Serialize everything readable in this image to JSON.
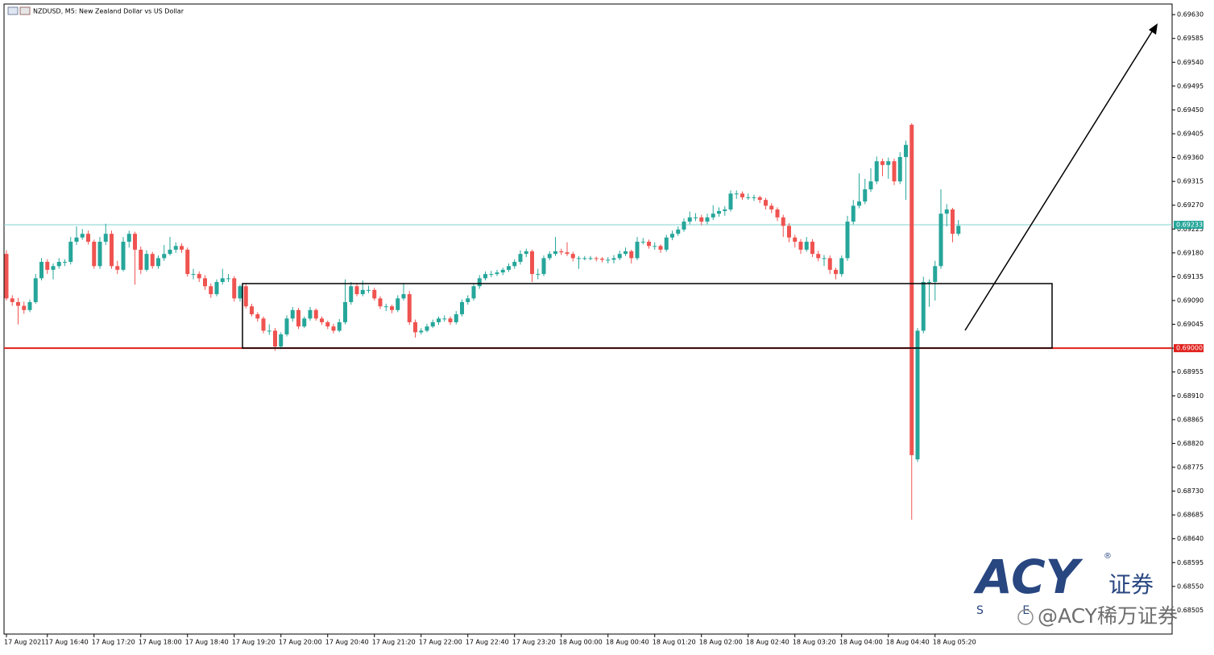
{
  "chart_data": {
    "type": "candlestick",
    "title": "NZDUSD, M5:  New Zealand Dollar vs US Dollar",
    "up_color": "#26a69a",
    "down_color": "#ef5350",
    "ylim": [
      0.6846,
      0.6965
    ],
    "yticks": [
      0.68505,
      {
        "value": 0.6855,
        "label": "0.68550"
      },
      0.68595,
      {
        "value": 0.6864,
        "label": "0.68640"
      },
      0.68685,
      {
        "value": 0.6873,
        "label": "0.68730"
      },
      0.68775,
      {
        "value": 0.6882,
        "label": "0.68820"
      },
      0.68865,
      {
        "value": 0.6891,
        "label": "0.68910"
      },
      0.68955,
      {
        "value": 0.69,
        "label": "0.69000"
      },
      0.69045,
      {
        "value": 0.6909,
        "label": "0.69090"
      },
      0.69135,
      {
        "value": 0.6918,
        "label": "0.69180"
      },
      0.69225,
      {
        "value": 0.6927,
        "label": "0.69270"
      },
      0.69315,
      {
        "value": 0.6936,
        "label": "0.69360"
      },
      0.69405,
      {
        "value": 0.6945,
        "label": "0.69450"
      },
      0.69495,
      {
        "value": 0.6954,
        "label": "0.69540"
      },
      0.69585,
      {
        "value": 0.6963,
        "label": "0.69630"
      }
    ],
    "hlines": [
      {
        "price": 0.69233,
        "color": "#7fd3cf",
        "label_color": "#26a69a"
      },
      {
        "price": {
          "value": 0.69,
          "label": "0.69000"
        },
        "color": "#e0201c",
        "label_color": "#e0201c"
      }
    ],
    "categories": [
      "17 Aug 2021",
      null,
      null,
      null,
      null,
      null,
      null,
      "17 Aug 16:40",
      null,
      null,
      null,
      null,
      null,
      null,
      null,
      "17 Aug 17:20",
      null,
      null,
      null,
      null,
      null,
      null,
      null,
      "17 Aug 18:00",
      null,
      null,
      null,
      null,
      null,
      null,
      null,
      "17 Aug 18:40",
      null,
      null,
      null,
      null,
      null,
      null,
      null,
      "17 Aug 19:20",
      null,
      null,
      null,
      null,
      null,
      null,
      null,
      "17 Aug 20:00",
      null,
      null,
      null,
      null,
      null,
      null,
      null,
      "17 Aug 20:40",
      null,
      null,
      null,
      null,
      null,
      null,
      null,
      "17 Aug 21:20",
      null,
      null,
      null,
      null,
      null,
      null,
      null,
      "17 Aug 22:00",
      null,
      null,
      null,
      null,
      null,
      null,
      null,
      "17 Aug 22:40",
      null,
      null,
      null,
      null,
      null,
      null,
      null,
      "17 Aug 23:20",
      null,
      null,
      null,
      null,
      null,
      null,
      null,
      "18 Aug 00:00",
      null,
      null,
      null,
      null,
      null,
      null,
      null,
      "18 Aug 00:40",
      null,
      null,
      null,
      null,
      null,
      null,
      null,
      "18 Aug 01:20",
      null,
      null,
      null,
      null,
      null,
      null,
      null,
      "18 Aug 02:00",
      null,
      null,
      null,
      null,
      null,
      null,
      null,
      "18 Aug 02:40",
      null,
      null,
      null,
      null,
      null,
      null,
      null,
      "18 Aug 03:20",
      null,
      null,
      null,
      null,
      null,
      null,
      null,
      "18 Aug 04:00",
      null,
      null,
      null,
      null,
      null,
      null,
      null,
      "18 Aug 04:40",
      null,
      null,
      null,
      null,
      null,
      null,
      null,
      "18 Aug 05:20",
      null,
      null,
      null,
      null
    ],
    "ohlc": [
      [
        0.69178,
        0.69185,
        0.6909,
        0.69094
      ],
      [
        0.69094,
        0.691,
        0.6908,
        0.69087
      ],
      [
        0.69087,
        0.69095,
        0.69045,
        0.6908
      ],
      [
        0.6908,
        0.69088,
        0.69065,
        0.69072
      ],
      [
        0.69072,
        0.69092,
        0.69068,
        0.69087
      ],
      [
        0.69087,
        0.6914,
        0.69084,
        0.69132
      ],
      [
        0.69132,
        0.6917,
        0.69128,
        0.69163
      ],
      [
        0.69163,
        0.69168,
        0.6914,
        0.69148
      ],
      [
        0.69148,
        0.6916,
        0.6913,
        0.69155
      ],
      [
        0.69155,
        0.6917,
        0.6915,
        0.69163
      ],
      [
        0.69163,
        0.69168,
        0.69155,
        0.69163
      ],
      [
        0.69163,
        0.6921,
        0.69158,
        0.69201
      ],
      [
        0.69201,
        0.6923,
        0.69195,
        0.69209
      ],
      [
        0.69209,
        0.69225,
        0.69205,
        0.69216
      ],
      [
        0.69216,
        0.69222,
        0.69196,
        0.69201
      ],
      [
        0.69201,
        0.69205,
        0.6915,
        0.69155
      ],
      [
        0.69155,
        0.6921,
        0.6915,
        0.69201
      ],
      [
        0.69201,
        0.69235,
        0.69195,
        0.69216
      ],
      [
        0.69216,
        0.69222,
        0.6915,
        0.69155
      ],
      [
        0.69155,
        0.69165,
        0.6914,
        0.69148
      ],
      [
        0.69148,
        0.6921,
        0.69145,
        0.69201
      ],
      [
        0.69201,
        0.69222,
        0.6919,
        0.69216
      ],
      [
        0.69216,
        0.6922,
        0.6912,
        0.69186
      ],
      [
        0.69186,
        0.69192,
        0.6914,
        0.69148
      ],
      [
        0.69148,
        0.69185,
        0.69145,
        0.69178
      ],
      [
        0.69178,
        0.69182,
        0.6915,
        0.69155
      ],
      [
        0.69155,
        0.69175,
        0.6915,
        0.6917
      ],
      [
        0.6917,
        0.69195,
        0.69165,
        0.69178
      ],
      [
        0.69178,
        0.6921,
        0.69175,
        0.69186
      ],
      [
        0.69186,
        0.692,
        0.6918,
        0.69193
      ],
      [
        0.69193,
        0.69198,
        0.6918,
        0.69186
      ],
      [
        0.69186,
        0.6919,
        0.69135,
        0.6914
      ],
      [
        0.6914,
        0.6915,
        0.6913,
        0.6914
      ],
      [
        0.6914,
        0.69145,
        0.69125,
        0.69132
      ],
      [
        0.69132,
        0.69138,
        0.6911,
        0.69117
      ],
      [
        0.69117,
        0.69122,
        0.69095,
        0.69102
      ],
      [
        0.69102,
        0.6913,
        0.69098,
        0.69125
      ],
      [
        0.69125,
        0.6915,
        0.6912,
        0.69132
      ],
      [
        0.69132,
        0.6914,
        0.69125,
        0.69132
      ],
      [
        0.69132,
        0.69136,
        0.69088,
        0.69094
      ],
      [
        0.69094,
        0.6912,
        0.69088,
        0.69117
      ],
      [
        0.69117,
        0.69122,
        0.69075,
        0.69079
      ],
      [
        0.69079,
        0.69084,
        0.6906,
        0.69064
      ],
      [
        0.69064,
        0.69068,
        0.6905,
        0.69056
      ],
      [
        0.69056,
        0.6906,
        0.69028,
        0.69033
      ],
      [
        0.69033,
        0.69045,
        0.69025,
        0.69033
      ],
      [
        0.69033,
        0.69038,
        0.68995,
        0.69003
      ],
      [
        0.69003,
        0.6903,
        0.68998,
        0.69026
      ],
      [
        0.69026,
        0.69062,
        0.69022,
        0.69056
      ],
      [
        0.69056,
        0.69078,
        0.6905,
        0.69072
      ],
      [
        0.69072,
        0.69076,
        0.69036,
        0.69041
      ],
      [
        0.69041,
        0.6906,
        0.69038,
        0.69056
      ],
      [
        0.69056,
        0.69078,
        0.69052,
        0.69072
      ],
      [
        0.69072,
        0.69075,
        0.69052,
        0.69056
      ],
      [
        0.69056,
        0.6906,
        0.69044,
        0.69049
      ],
      [
        0.69049,
        0.69052,
        0.69036,
        0.69041
      ],
      [
        0.69041,
        0.69046,
        0.69028,
        0.69033
      ],
      [
        0.69033,
        0.69055,
        0.6903,
        0.69049
      ],
      [
        0.69049,
        0.6913,
        0.69045,
        0.69087
      ],
      [
        0.69087,
        0.69125,
        0.69082,
        0.69117
      ],
      [
        0.69117,
        0.69122,
        0.69098,
        0.69102
      ],
      [
        0.69102,
        0.69128,
        0.69098,
        0.6911
      ],
      [
        0.6911,
        0.69118,
        0.69104,
        0.6911
      ],
      [
        0.6911,
        0.69114,
        0.6909,
        0.69094
      ],
      [
        0.69094,
        0.69098,
        0.69074,
        0.69079
      ],
      [
        0.69079,
        0.69084,
        0.6907,
        0.69079
      ],
      [
        0.69079,
        0.69082,
        0.69066,
        0.69072
      ],
      [
        0.69072,
        0.691,
        0.69068,
        0.69094
      ],
      [
        0.69094,
        0.69122,
        0.6909,
        0.69102
      ],
      [
        0.69102,
        0.69108,
        0.69044,
        0.69049
      ],
      [
        0.69049,
        0.69054,
        0.6902,
        0.6903
      ],
      [
        0.6903,
        0.69038,
        0.69026,
        0.69033
      ],
      [
        0.69033,
        0.69046,
        0.6903,
        0.69041
      ],
      [
        0.69041,
        0.69054,
        0.69038,
        0.69049
      ],
      [
        0.69049,
        0.6906,
        0.69044,
        0.69056
      ],
      [
        0.69056,
        0.69062,
        0.6905,
        0.69056
      ],
      [
        0.69056,
        0.6906,
        0.69044,
        0.69049
      ],
      [
        0.69049,
        0.6907,
        0.69045,
        0.69064
      ],
      [
        0.69064,
        0.69092,
        0.6906,
        0.69087
      ],
      [
        0.69087,
        0.691,
        0.69082,
        0.69094
      ],
      [
        0.69094,
        0.69122,
        0.6909,
        0.69117
      ],
      [
        0.69117,
        0.69138,
        0.69112,
        0.69132
      ],
      [
        0.69132,
        0.69145,
        0.69128,
        0.6914
      ],
      [
        0.6914,
        0.69146,
        0.69134,
        0.6914
      ],
      [
        0.6914,
        0.69148,
        0.69136,
        0.69143
      ],
      [
        0.69143,
        0.69152,
        0.69138,
        0.69148
      ],
      [
        0.69148,
        0.6916,
        0.69144,
        0.69155
      ],
      [
        0.69155,
        0.69168,
        0.6915,
        0.69163
      ],
      [
        0.69163,
        0.69185,
        0.69158,
        0.69178
      ],
      [
        0.69178,
        0.69188,
        0.69172,
        0.69183
      ],
      [
        0.69183,
        0.69186,
        0.69125,
        0.6914
      ],
      [
        0.6914,
        0.6915,
        0.6913,
        0.6914
      ],
      [
        0.6914,
        0.69175,
        0.69136,
        0.6917
      ],
      [
        0.6917,
        0.69183,
        0.69166,
        0.69178
      ],
      [
        0.69178,
        0.6921,
        0.69174,
        0.69183
      ],
      [
        0.69183,
        0.69188,
        0.69176,
        0.69181
      ],
      [
        0.69181,
        0.692,
        0.69174,
        0.69178
      ],
      [
        0.69178,
        0.69182,
        0.69164,
        0.6917
      ],
      [
        0.6917,
        0.69174,
        0.6915,
        0.6917
      ],
      [
        0.6917,
        0.69174,
        0.69166,
        0.6917
      ],
      [
        0.6917,
        0.69174,
        0.69166,
        0.6917
      ],
      [
        0.6917,
        0.69173,
        0.69164,
        0.69169
      ],
      [
        0.69169,
        0.69172,
        0.69162,
        0.69167
      ],
      [
        0.69167,
        0.69172,
        0.6916,
        0.69167
      ],
      [
        0.69167,
        0.69176,
        0.6916,
        0.6917
      ],
      [
        0.6917,
        0.69184,
        0.69166,
        0.69178
      ],
      [
        0.69178,
        0.6919,
        0.69174,
        0.69183
      ],
      [
        0.69183,
        0.69186,
        0.6916,
        0.6917
      ],
      [
        0.6917,
        0.6921,
        0.69166,
        0.69201
      ],
      [
        0.69201,
        0.69208,
        0.69196,
        0.69201
      ],
      [
        0.69201,
        0.69205,
        0.69188,
        0.69193
      ],
      [
        0.69193,
        0.692,
        0.69186,
        0.69193
      ],
      [
        0.69193,
        0.69196,
        0.6918,
        0.69186
      ],
      [
        0.69186,
        0.69214,
        0.69182,
        0.69209
      ],
      [
        0.69209,
        0.69222,
        0.69204,
        0.69216
      ],
      [
        0.69216,
        0.6923,
        0.69212,
        0.69224
      ],
      [
        0.69224,
        0.69245,
        0.6922,
        0.69239
      ],
      [
        0.69239,
        0.69258,
        0.69234,
        0.69247
      ],
      [
        0.69247,
        0.69255,
        0.6924,
        0.69247
      ],
      [
        0.69247,
        0.69252,
        0.69232,
        0.69239
      ],
      [
        0.69239,
        0.69254,
        0.69234,
        0.69247
      ],
      [
        0.69247,
        0.6927,
        0.69242,
        0.69254
      ],
      [
        0.69254,
        0.69266,
        0.69248,
        0.69259
      ],
      [
        0.69259,
        0.69268,
        0.6925,
        0.69262
      ],
      [
        0.69262,
        0.69298,
        0.69258,
        0.69292
      ],
      [
        0.69292,
        0.69298,
        0.69282,
        0.69292
      ],
      [
        0.69292,
        0.69296,
        0.6928,
        0.69285
      ],
      [
        0.69285,
        0.69292,
        0.6928,
        0.69285
      ],
      [
        0.69285,
        0.6929,
        0.69278,
        0.69285
      ],
      [
        0.69285,
        0.69288,
        0.69274,
        0.6928
      ],
      [
        0.6928,
        0.69284,
        0.69262,
        0.69269
      ],
      [
        0.69269,
        0.69274,
        0.69255,
        0.69262
      ],
      [
        0.69262,
        0.69266,
        0.6924,
        0.69247
      ],
      [
        0.69247,
        0.69252,
        0.6921,
        0.69231
      ],
      [
        0.69231,
        0.69236,
        0.692,
        0.69209
      ],
      [
        0.69209,
        0.69214,
        0.6919,
        0.69201
      ],
      [
        0.69201,
        0.69206,
        0.69178,
        0.69186
      ],
      [
        0.69186,
        0.6921,
        0.69182,
        0.69201
      ],
      [
        0.69201,
        0.69206,
        0.69172,
        0.69178
      ],
      [
        0.69178,
        0.69184,
        0.69164,
        0.6917
      ],
      [
        0.6917,
        0.69176,
        0.69155,
        0.6917
      ],
      [
        0.6917,
        0.69175,
        0.6914,
        0.69148
      ],
      [
        0.69148,
        0.69152,
        0.6913,
        0.6914
      ],
      [
        0.6914,
        0.69175,
        0.69135,
        0.6917
      ],
      [
        0.6917,
        0.6925,
        0.69165,
        0.69239
      ],
      [
        0.69239,
        0.6928,
        0.69234,
        0.69269
      ],
      [
        0.69269,
        0.6933,
        0.69264,
        0.69277
      ],
      [
        0.69277,
        0.6932,
        0.69272,
        0.693
      ],
      [
        0.693,
        0.6934,
        0.69295,
        0.69315
      ],
      [
        0.69315,
        0.69362,
        0.6931,
        0.69353
      ],
      [
        0.69353,
        0.69358,
        0.69325,
        0.69346
      ],
      [
        0.69346,
        0.6936,
        0.6932,
        0.69353
      ],
      [
        0.69353,
        0.69358,
        0.69308,
        0.69315
      ],
      [
        0.69315,
        0.6937,
        0.6931,
        0.69361
      ],
      [
        0.69361,
        0.69392,
        0.6928,
        0.69384
      ],
      [
        0.69422,
        0.69425,
        0.68676,
        0.68798
      ],
      [
        0.6879,
        0.69038,
        0.68785,
        0.69033
      ],
      [
        0.69033,
        0.69135,
        0.69028,
        0.69125
      ],
      [
        0.69125,
        0.6913,
        0.69078,
        0.69125
      ],
      [
        0.69125,
        0.69165,
        0.6909,
        0.69155
      ],
      [
        0.69155,
        0.693,
        0.6915,
        0.69254
      ],
      [
        0.69254,
        0.69272,
        0.6923,
        0.69262
      ],
      [
        0.69262,
        0.69265,
        0.692,
        0.69216
      ],
      [
        0.69216,
        0.69242,
        0.69212,
        0.69231
      ]
    ],
    "watermark": {
      "brand": "ACY",
      "mark": "®",
      "cn": "证券",
      "sub": "S E",
      "handle": "@ACY稀万证券"
    }
  }
}
